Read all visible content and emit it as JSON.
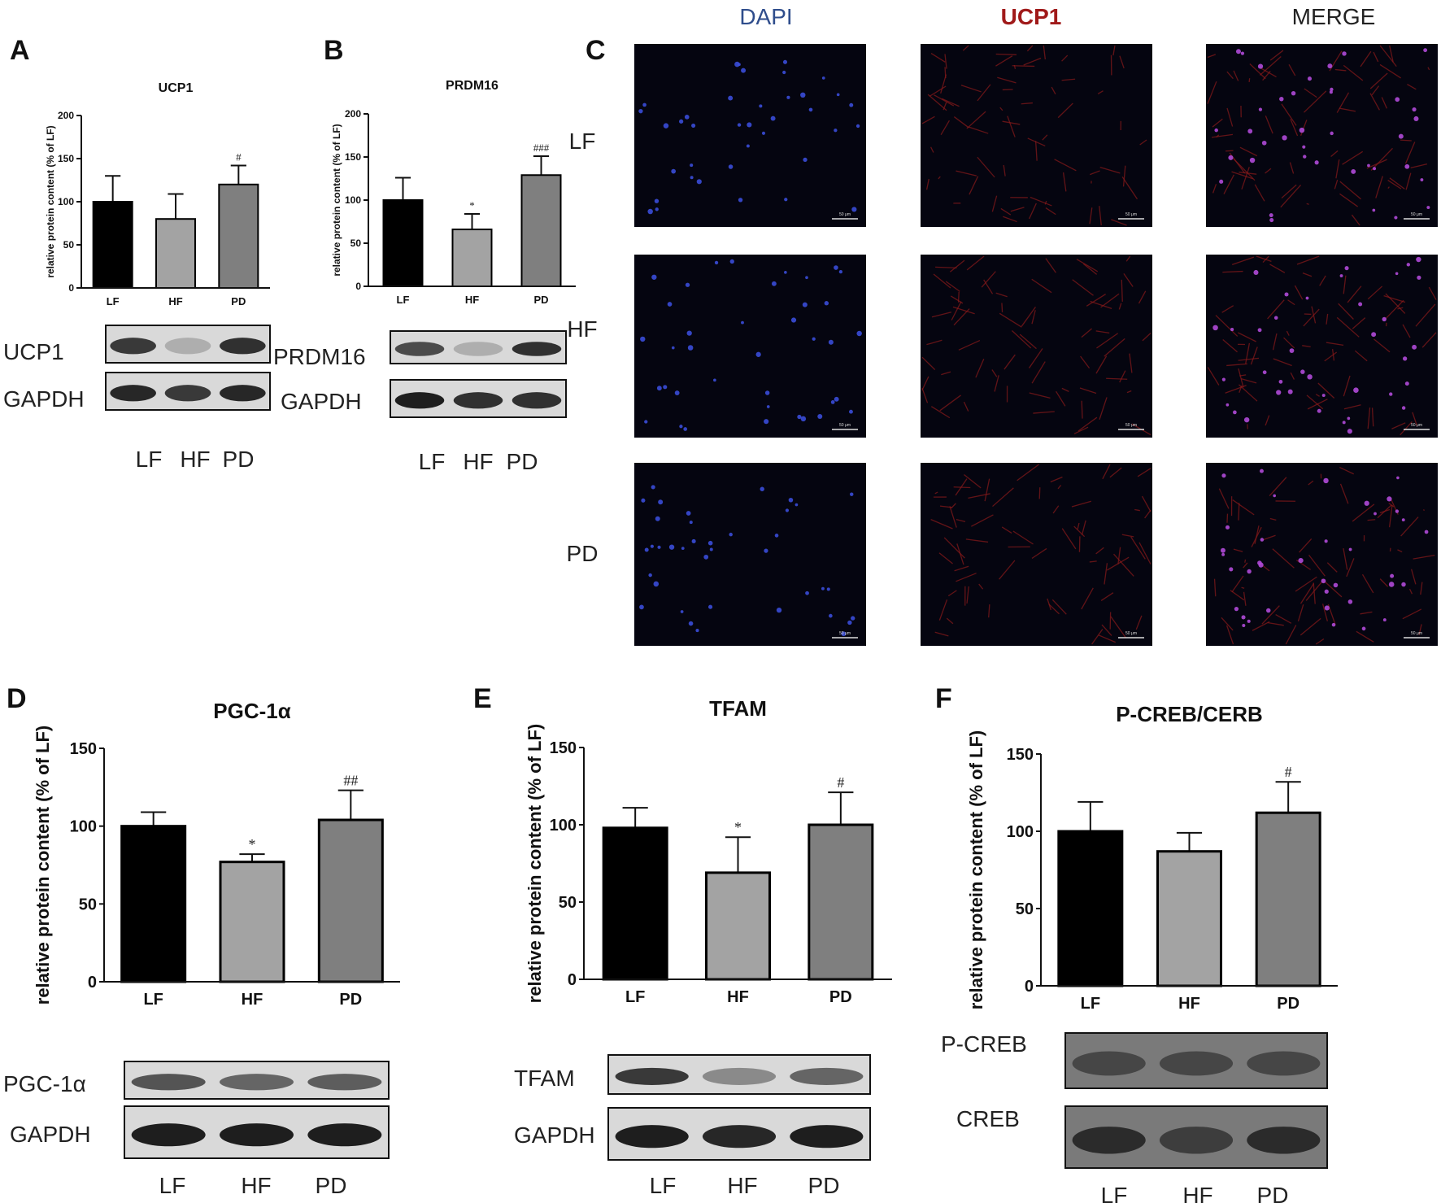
{
  "panel_labels": {
    "A": "A",
    "B": "B",
    "C": "C",
    "D": "D",
    "E": "E",
    "F": "F"
  },
  "colors": {
    "LF": "#000000",
    "HF": "#a3a3a3",
    "PD": "#7f7f7f",
    "dapi_label": "#2f4d8c",
    "ucp1_label": "#a01a1a",
    "merge_label": "#222222"
  },
  "chart_data": [
    {
      "id": "A",
      "type": "bar",
      "title": "UCP1",
      "ylabel": "relative protein content (% of LF)",
      "categories": [
        "LF",
        "HF",
        "PD"
      ],
      "values": [
        100,
        80,
        120
      ],
      "errors": [
        30,
        29,
        22
      ],
      "annotations": [
        "",
        "",
        "#"
      ],
      "ylim": [
        0,
        200
      ],
      "yticks": [
        0,
        50,
        100,
        150,
        200
      ]
    },
    {
      "id": "B",
      "type": "bar",
      "title": "PRDM16",
      "ylabel": "relative protein content (% of LF)",
      "categories": [
        "LF",
        "HF",
        "PD"
      ],
      "values": [
        100,
        66,
        129
      ],
      "errors": [
        26,
        18,
        22
      ],
      "annotations": [
        "",
        "*",
        "###"
      ],
      "ylim": [
        0,
        200
      ],
      "yticks": [
        0,
        50,
        100,
        150,
        200
      ]
    },
    {
      "id": "D",
      "type": "bar",
      "title": "PGC-1α",
      "ylabel": "relative protein content (% of LF)",
      "categories": [
        "LF",
        "HF",
        "PD"
      ],
      "values": [
        100,
        77,
        104
      ],
      "errors": [
        9,
        5,
        19
      ],
      "annotations": [
        "",
        "*",
        "##"
      ],
      "ylim": [
        0,
        150
      ],
      "yticks": [
        0,
        50,
        100,
        150
      ]
    },
    {
      "id": "E",
      "type": "bar",
      "title": "TFAM",
      "ylabel": "relative protein content (% of LF)",
      "categories": [
        "LF",
        "HF",
        "PD"
      ],
      "values": [
        98,
        69,
        100
      ],
      "errors": [
        13,
        23,
        21
      ],
      "annotations": [
        "",
        "*",
        "#"
      ],
      "ylim": [
        0,
        150
      ],
      "yticks": [
        0,
        50,
        100,
        150
      ]
    },
    {
      "id": "F",
      "type": "bar",
      "title": "P-CREB/CERB",
      "ylabel": "relative protein content (% of LF)",
      "categories": [
        "LF",
        "HF",
        "PD"
      ],
      "values": [
        100,
        87,
        112
      ],
      "errors": [
        19,
        12,
        20
      ],
      "annotations": [
        "",
        "",
        "#"
      ],
      "ylim": [
        0,
        150
      ],
      "yticks": [
        0,
        50,
        100,
        150
      ]
    }
  ],
  "blots": {
    "A": {
      "bands": [
        "UCP1",
        "GAPDH"
      ],
      "lanes": [
        "LF",
        "HF",
        "PD"
      ],
      "intensity": [
        [
          0.8,
          0.15,
          0.85
        ],
        [
          0.9,
          0.8,
          0.9
        ]
      ]
    },
    "B": {
      "bands": [
        "PRDM16",
        "GAPDH"
      ],
      "lanes": [
        "LF",
        "HF",
        "PD"
      ],
      "intensity": [
        [
          0.7,
          0.15,
          0.85
        ],
        [
          0.95,
          0.85,
          0.85
        ]
      ]
    },
    "D": {
      "bands": [
        "PGC-1α",
        "GAPDH"
      ],
      "lanes": [
        "LF",
        "HF",
        "PD"
      ],
      "intensity": [
        [
          0.65,
          0.55,
          0.6
        ],
        [
          0.95,
          0.95,
          0.95
        ]
      ]
    },
    "E": {
      "bands": [
        "TFAM",
        "GAPDH"
      ],
      "lanes": [
        "LF",
        "HF",
        "PD"
      ],
      "intensity": [
        [
          0.8,
          0.35,
          0.55
        ],
        [
          0.95,
          0.9,
          0.95
        ]
      ]
    },
    "F": {
      "bands": [
        "P-CREB",
        "CREB"
      ],
      "lanes": [
        "LF",
        "HF",
        "PD"
      ],
      "intensity": [
        [
          0.7,
          0.7,
          0.7
        ],
        [
          0.85,
          0.75,
          0.85
        ]
      ]
    }
  },
  "microscopy": {
    "columns": [
      "DAPI",
      "UCP1",
      "MERGE"
    ],
    "rows": [
      "LF",
      "HF",
      "PD"
    ],
    "scale_bar": "50 μm"
  }
}
